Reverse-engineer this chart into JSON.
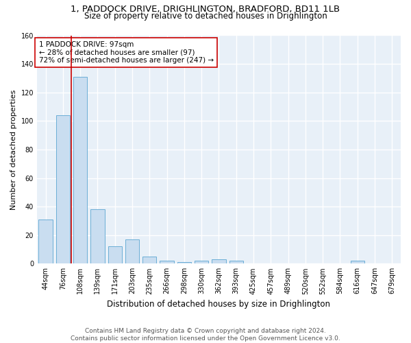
{
  "title_line1": "1, PADDOCK DRIVE, DRIGHLINGTON, BRADFORD, BD11 1LB",
  "title_line2": "Size of property relative to detached houses in Drighlington",
  "xlabel": "Distribution of detached houses by size in Drighlington",
  "ylabel": "Number of detached properties",
  "bar_color": "#c9ddf0",
  "bar_edge_color": "#6baed6",
  "background_color": "#e8f0f8",
  "grid_color": "#ffffff",
  "categories": [
    "44sqm",
    "76sqm",
    "108sqm",
    "139sqm",
    "171sqm",
    "203sqm",
    "235sqm",
    "266sqm",
    "298sqm",
    "330sqm",
    "362sqm",
    "393sqm",
    "425sqm",
    "457sqm",
    "489sqm",
    "520sqm",
    "552sqm",
    "584sqm",
    "616sqm",
    "647sqm",
    "679sqm"
  ],
  "values": [
    31,
    104,
    131,
    38,
    12,
    17,
    5,
    2,
    1,
    2,
    3,
    2,
    0,
    0,
    0,
    0,
    0,
    0,
    2,
    0,
    0
  ],
  "ylim": [
    0,
    160
  ],
  "yticks": [
    0,
    20,
    40,
    60,
    80,
    100,
    120,
    140,
    160
  ],
  "vline_x": 1.5,
  "vline_color": "#cc0000",
  "annotation_text": "1 PADDOCK DRIVE: 97sqm\n← 28% of detached houses are smaller (97)\n72% of semi-detached houses are larger (247) →",
  "annotation_box_color": "#ffffff",
  "annotation_box_edge_color": "#cc0000",
  "footer_text": "Contains HM Land Registry data © Crown copyright and database right 2024.\nContains public sector information licensed under the Open Government Licence v3.0.",
  "title_fontsize": 9.5,
  "subtitle_fontsize": 8.5,
  "xlabel_fontsize": 8.5,
  "ylabel_fontsize": 8,
  "tick_fontsize": 7,
  "annotation_fontsize": 7.5,
  "footer_fontsize": 6.5
}
